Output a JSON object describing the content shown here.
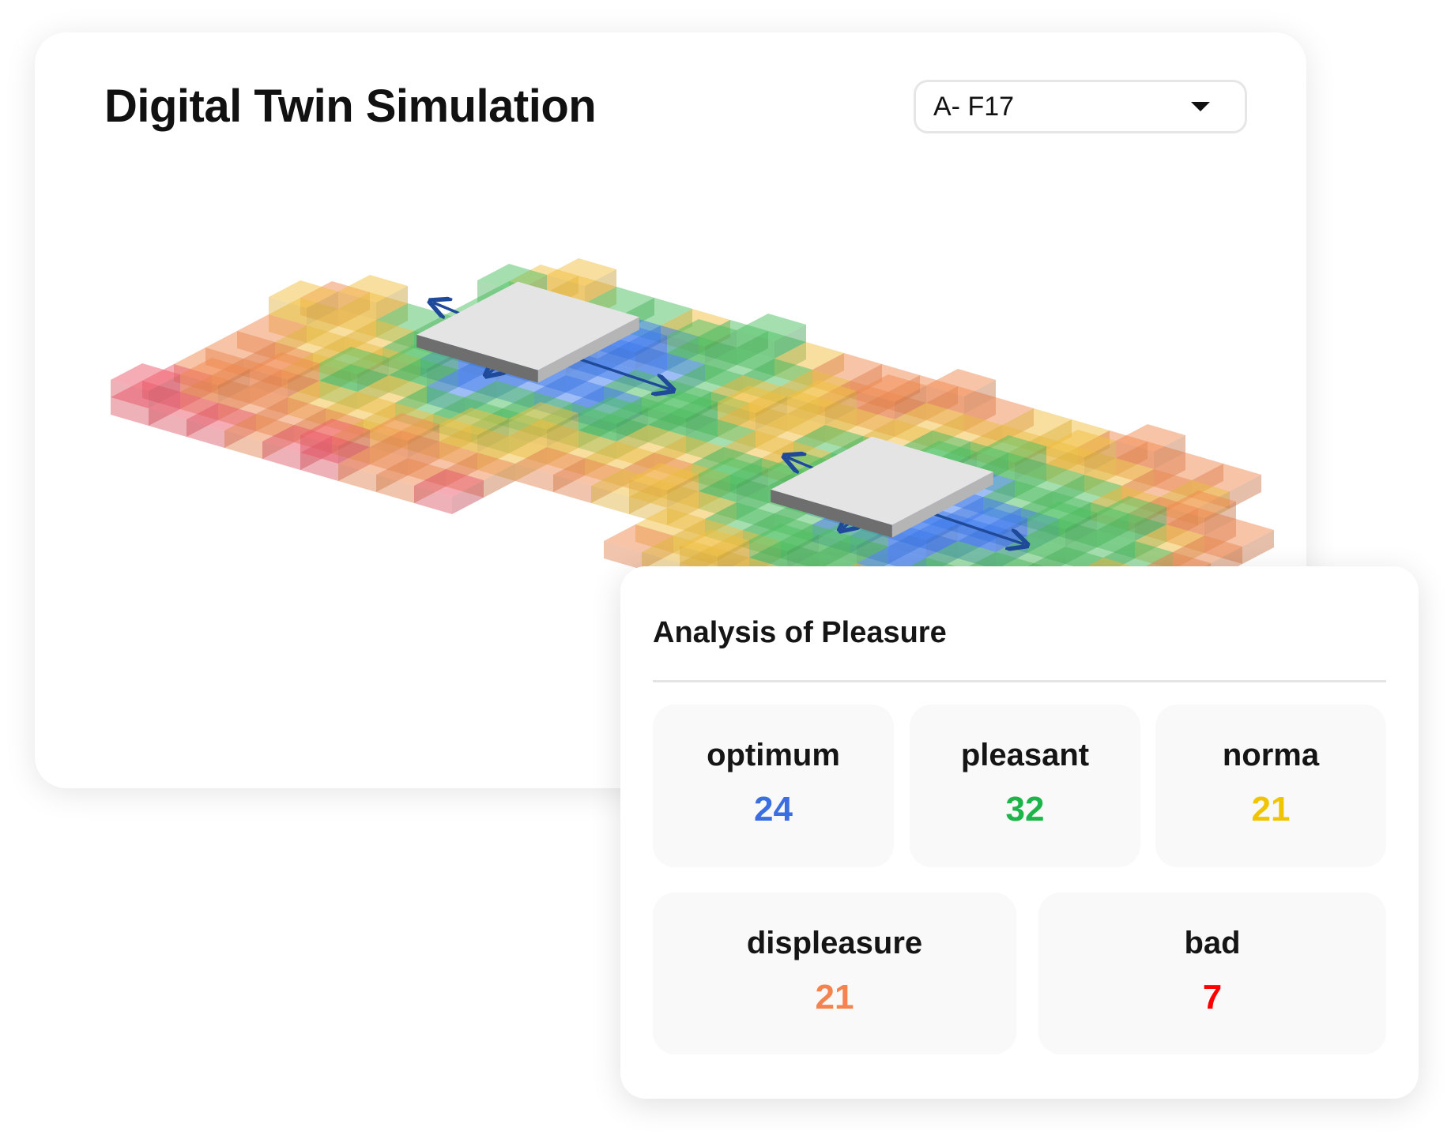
{
  "header": {
    "title": "Digital Twin Simulation"
  },
  "selector": {
    "value": "A- F17",
    "icon": "caret-down-icon"
  },
  "analysis": {
    "title": "Analysis of Pleasure",
    "metrics": [
      {
        "label": "optimum",
        "value": "24",
        "color": "#3b6fe0"
      },
      {
        "label": "pleasant",
        "value": "32",
        "color": "#1db54a"
      },
      {
        "label": "norma",
        "value": "21",
        "color": "#f0c400"
      },
      {
        "label": "displeasure",
        "value": "21",
        "color": "#f4834f"
      },
      {
        "label": "bad",
        "value": "7",
        "color": "#ff0000"
      }
    ]
  },
  "visualization": {
    "palette": {
      "optimum": "#3d7bf0",
      "pleasant": "#4cc060",
      "norma": "#f2c040",
      "displeasure": "#f28a50",
      "bad": "#ee5a6a"
    },
    "unit_color": "#e4e4e4",
    "arrow_color": "#1f4a9a"
  }
}
